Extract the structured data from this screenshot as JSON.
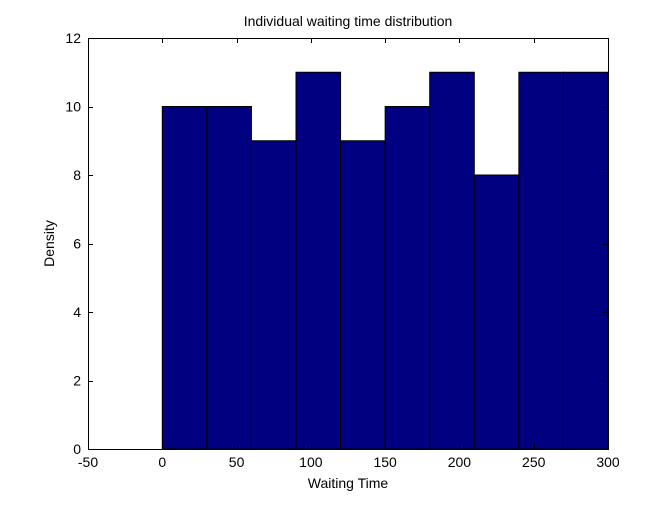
{
  "chart_data": {
    "type": "bar",
    "title": "Individual waiting time distribution",
    "xlabel": "Waiting Time",
    "ylabel": "Density",
    "xlim": [
      -50,
      300
    ],
    "ylim": [
      0,
      12
    ],
    "xticks": [
      -50,
      0,
      50,
      100,
      150,
      200,
      250,
      300
    ],
    "yticks": [
      0,
      2,
      4,
      6,
      8,
      10,
      12
    ],
    "bins": [
      {
        "x0": 0,
        "x1": 30,
        "value": 10
      },
      {
        "x0": 30,
        "x1": 60,
        "value": 10
      },
      {
        "x0": 60,
        "x1": 90,
        "value": 9
      },
      {
        "x0": 90,
        "x1": 120,
        "value": 11
      },
      {
        "x0": 120,
        "x1": 150,
        "value": 9
      },
      {
        "x0": 150,
        "x1": 180,
        "value": 10
      },
      {
        "x0": 180,
        "x1": 210,
        "value": 11
      },
      {
        "x0": 210,
        "x1": 240,
        "value": 8
      },
      {
        "x0": 240,
        "x1": 270,
        "value": 11
      },
      {
        "x0": 270,
        "x1": 300,
        "value": 11
      }
    ],
    "grid": false,
    "bar_color": "#000080",
    "edge_color": "#000000"
  }
}
